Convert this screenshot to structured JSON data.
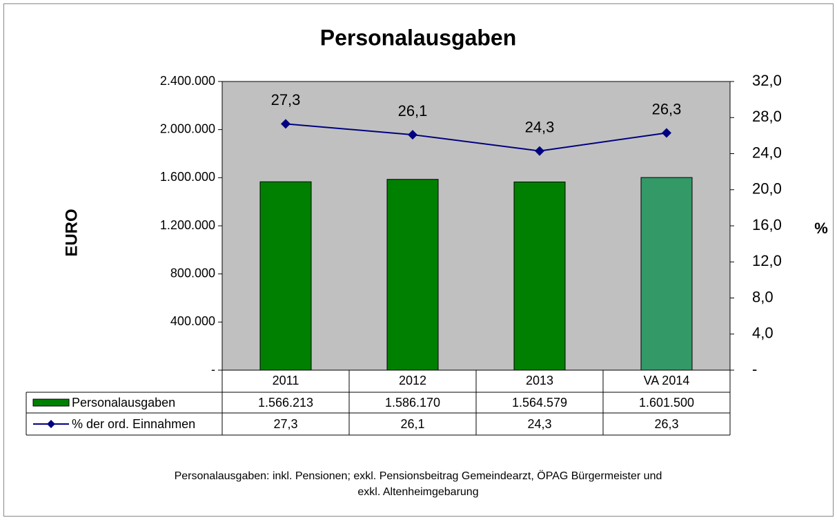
{
  "chart_data": {
    "type": "bar",
    "title": "Personalausgaben",
    "y_label": "EURO",
    "y2_label": "%",
    "categories": [
      "2011",
      "2012",
      "2013",
      "VA 2014"
    ],
    "series": [
      {
        "name": "Personalausgaben",
        "type": "bar",
        "color": "#008000",
        "colors": [
          "#008000",
          "#008000",
          "#008000",
          "#339966"
        ],
        "values": [
          1566213,
          1586170,
          1564579,
          1601500
        ],
        "value_labels": [
          "1.566.213",
          "1.586.170",
          "1.564.579",
          "1.601.500"
        ]
      },
      {
        "name": "% der ord. Einnahmen",
        "type": "line",
        "axis": "y2",
        "color": "#000080",
        "values": [
          27.3,
          26.1,
          24.3,
          26.3
        ],
        "value_labels": [
          "27,3",
          "26,1",
          "24,3",
          "26,3"
        ]
      }
    ],
    "ylim": [
      0,
      2400000
    ],
    "yticks": [
      {
        "value": 0,
        "label": "-"
      },
      {
        "value": 400000,
        "label": "400.000"
      },
      {
        "value": 800000,
        "label": "800.000"
      },
      {
        "value": 1200000,
        "label": "1.200.000"
      },
      {
        "value": 1600000,
        "label": "1.600.000"
      },
      {
        "value": 2000000,
        "label": "2.000.000"
      },
      {
        "value": 2400000,
        "label": "2.400.000"
      }
    ],
    "y2lim": [
      0,
      32
    ],
    "y2ticks": [
      {
        "value": 0,
        "label": "-"
      },
      {
        "value": 4,
        "label": "4,0"
      },
      {
        "value": 8,
        "label": "8,0"
      },
      {
        "value": 12,
        "label": "12,0"
      },
      {
        "value": 16,
        "label": "16,0"
      },
      {
        "value": 20,
        "label": "20,0"
      },
      {
        "value": 24,
        "label": "24,0"
      },
      {
        "value": 28,
        "label": "28,0"
      },
      {
        "value": 32,
        "label": "32,0"
      }
    ],
    "grid": false,
    "note": [
      "Personalausgaben: inkl. Pensionen; exkl. Pensionsbeitrag Gemeindearzt, ÖPAG Bürgermeister und",
      "exkl. Altenheimgebarung"
    ]
  }
}
